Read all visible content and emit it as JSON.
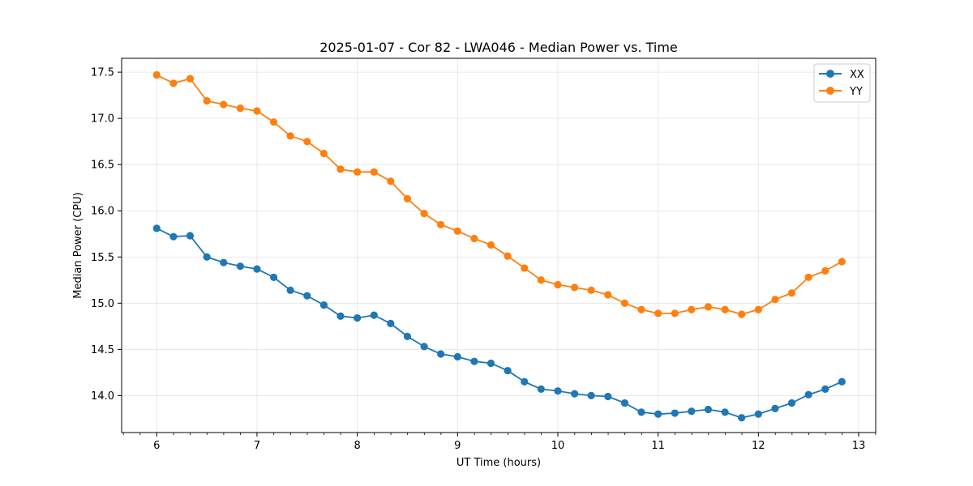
{
  "chart_data": {
    "type": "line",
    "title": "2025-01-07 - Cor 82 - LWA046 - Median Power vs. Time",
    "xlabel": "UT Time (hours)",
    "ylabel": "Median Power (CPU)",
    "xlim": [
      5.65,
      13.17
    ],
    "ylim": [
      13.6,
      17.65
    ],
    "xticks": [
      6,
      7,
      8,
      9,
      10,
      11,
      12,
      13
    ],
    "xtick_labels": [
      "6",
      "7",
      "8",
      "9",
      "10",
      "11",
      "12",
      "13"
    ],
    "xminor_step": 0.1667,
    "yticks": [
      14.0,
      14.5,
      15.0,
      15.5,
      16.0,
      16.5,
      17.0,
      17.5
    ],
    "ytick_labels": [
      "14.0",
      "14.5",
      "15.0",
      "15.5",
      "16.0",
      "16.5",
      "17.0",
      "17.5"
    ],
    "grid": true,
    "legend_position": "top-right",
    "x": [
      6.0,
      6.167,
      6.333,
      6.5,
      6.667,
      6.833,
      7.0,
      7.167,
      7.333,
      7.5,
      7.667,
      7.833,
      8.0,
      8.167,
      8.333,
      8.5,
      8.667,
      8.833,
      9.0,
      9.167,
      9.333,
      9.5,
      9.667,
      9.833,
      10.0,
      10.167,
      10.333,
      10.5,
      10.667,
      10.833,
      11.0,
      11.167,
      11.333,
      11.5,
      11.667,
      11.833,
      12.0,
      12.167,
      12.333,
      12.5,
      12.667,
      12.833
    ],
    "series": [
      {
        "name": "XX",
        "color": "#1f77b4",
        "values": [
          15.81,
          15.72,
          15.73,
          15.5,
          15.44,
          15.4,
          15.37,
          15.28,
          15.14,
          15.08,
          14.98,
          14.86,
          14.84,
          14.87,
          14.78,
          14.64,
          14.53,
          14.45,
          14.42,
          14.37,
          14.35,
          14.27,
          14.15,
          14.07,
          14.05,
          14.02,
          14.0,
          13.99,
          13.92,
          13.82,
          13.8,
          13.81,
          13.83,
          13.85,
          13.82,
          13.76,
          13.8,
          13.86,
          13.92,
          14.01,
          14.07,
          14.15
        ]
      },
      {
        "name": "YY",
        "color": "#ff7f0e",
        "values": [
          17.47,
          17.38,
          17.43,
          17.19,
          17.15,
          17.11,
          17.08,
          16.96,
          16.81,
          16.75,
          16.62,
          16.45,
          16.42,
          16.42,
          16.32,
          16.13,
          15.97,
          15.85,
          15.78,
          15.7,
          15.63,
          15.51,
          15.38,
          15.25,
          15.2,
          15.17,
          15.14,
          15.09,
          15.0,
          14.93,
          14.89,
          14.89,
          14.93,
          14.96,
          14.93,
          14.88,
          14.93,
          15.04,
          15.11,
          15.28,
          15.35,
          15.45
        ]
      }
    ]
  }
}
